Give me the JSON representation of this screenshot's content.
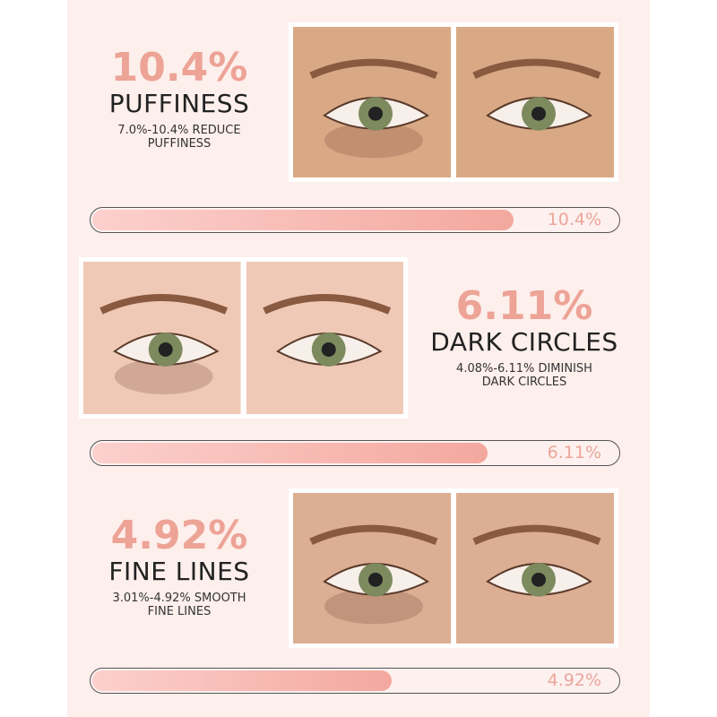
{
  "colors": {
    "accent": "#eda396",
    "background": "#fdefec",
    "bar_fill_start": "#fcd0cd",
    "bar_fill_end": "#f3a89e"
  },
  "sections": [
    {
      "percent": "10.4%",
      "title": "PUFFINESS",
      "subtitle_line1": "7.0%-10.4% REDUCE",
      "subtitle_line2": "PUFFINESS",
      "bar_label": "10.4%",
      "bar_fill": 0.8,
      "skin": "#d9a986",
      "images": [
        "before-eye-puffiness",
        "after-eye-puffiness"
      ]
    },
    {
      "percent": "6.11%",
      "title": "DARK CIRCLES",
      "subtitle_line1": "4.08%-6.11% DIMINISH",
      "subtitle_line2": "DARK CIRCLES",
      "bar_label": "6.11%",
      "bar_fill": 0.75,
      "skin": "#efc9b6",
      "images": [
        "before-eye-dark-circles",
        "after-eye-dark-circles"
      ]
    },
    {
      "percent": "4.92%",
      "title": "FINE LINES",
      "subtitle_line1": "3.01%-4.92% SMOOTH",
      "subtitle_line2": "FINE LINES",
      "bar_label": "4.92%",
      "bar_fill": 0.57,
      "skin": "#dcae94",
      "images": [
        "before-eye-fine-lines",
        "after-eye-fine-lines"
      ]
    }
  ]
}
